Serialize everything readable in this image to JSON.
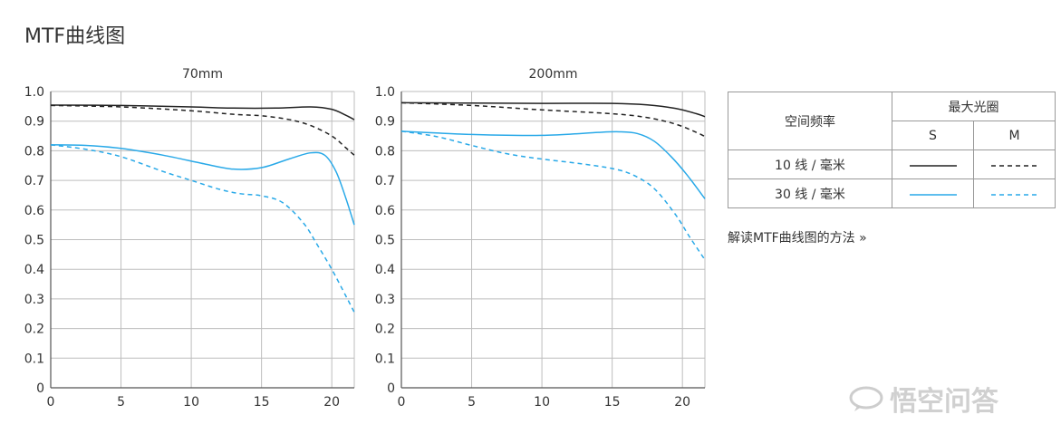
{
  "page": {
    "title": "MTF曲线图"
  },
  "chart_data": [
    {
      "type": "line",
      "title": "70mm",
      "xlim": [
        0,
        21.6
      ],
      "ylim": [
        0,
        1.0
      ],
      "x_ticks": [
        "0",
        "5",
        "10",
        "15",
        "20"
      ],
      "y_ticks": [
        "1.0",
        "0.9",
        "0.8",
        "0.7",
        "0.6",
        "0.5",
        "0.4",
        "0.3",
        "0.2",
        "0.1",
        "0"
      ],
      "grid": true,
      "series": [
        {
          "legend_ref": "10 线 / 毫米 · S",
          "color": "#222222",
          "dashed": false,
          "x": [
            0,
            5,
            10,
            13,
            16,
            18.5,
            20,
            21,
            21.6
          ],
          "y": [
            0.954,
            0.953,
            0.948,
            0.944,
            0.944,
            0.948,
            0.94,
            0.92,
            0.905
          ]
        },
        {
          "legend_ref": "10 线 / 毫米 · M",
          "color": "#222222",
          "dashed": true,
          "x": [
            0,
            5,
            10,
            13,
            15,
            17,
            18.5,
            20,
            21,
            21.6
          ],
          "y": [
            0.953,
            0.948,
            0.935,
            0.923,
            0.918,
            0.905,
            0.885,
            0.85,
            0.81,
            0.785
          ]
        },
        {
          "legend_ref": "30 线 / 毫米 · S",
          "color": "#29A9E8",
          "dashed": false,
          "x": [
            0,
            2.5,
            5,
            8,
            11,
            13,
            15,
            17,
            18.5,
            19.5,
            20.3,
            21,
            21.6
          ],
          "y": [
            0.82,
            0.818,
            0.808,
            0.785,
            0.755,
            0.738,
            0.743,
            0.773,
            0.793,
            0.785,
            0.73,
            0.64,
            0.55
          ]
        },
        {
          "legend_ref": "30 线 / 毫米 · M",
          "color": "#29A9E8",
          "dashed": true,
          "x": [
            0,
            2.5,
            5,
            8,
            10,
            12,
            13.5,
            15,
            16.5,
            18,
            19,
            20,
            21,
            21.6
          ],
          "y": [
            0.82,
            0.805,
            0.78,
            0.73,
            0.7,
            0.67,
            0.655,
            0.648,
            0.625,
            0.555,
            0.48,
            0.4,
            0.31,
            0.255
          ]
        }
      ]
    },
    {
      "type": "line",
      "title": "200mm",
      "xlim": [
        0,
        21.6
      ],
      "ylim": [
        0,
        1.0
      ],
      "x_ticks": [
        "0",
        "5",
        "10",
        "15",
        "20"
      ],
      "y_ticks": [
        "1.0",
        "0.9",
        "0.8",
        "0.7",
        "0.6",
        "0.5",
        "0.4",
        "0.3",
        "0.2",
        "0.1",
        "0"
      ],
      "grid": true,
      "series": [
        {
          "legend_ref": "10 线 / 毫米 · S",
          "color": "#222222",
          "dashed": false,
          "x": [
            0,
            5,
            10,
            15,
            17.5,
            19.5,
            21,
            21.6
          ],
          "y": [
            0.962,
            0.961,
            0.96,
            0.96,
            0.955,
            0.943,
            0.925,
            0.915
          ]
        },
        {
          "legend_ref": "10 线 / 毫米 · M",
          "color": "#222222",
          "dashed": true,
          "x": [
            0,
            5,
            10,
            15,
            17.5,
            19.5,
            21,
            21.6
          ],
          "y": [
            0.962,
            0.953,
            0.938,
            0.925,
            0.912,
            0.89,
            0.862,
            0.848
          ]
        },
        {
          "legend_ref": "30 线 / 毫米 · S",
          "color": "#29A9E8",
          "dashed": false,
          "x": [
            0,
            2.5,
            5,
            8,
            10,
            12,
            14,
            15.5,
            16.8,
            18,
            19.2,
            20.3,
            21.6
          ],
          "y": [
            0.866,
            0.86,
            0.855,
            0.852,
            0.852,
            0.856,
            0.862,
            0.864,
            0.858,
            0.832,
            0.78,
            0.72,
            0.638
          ]
        },
        {
          "legend_ref": "30 线 / 毫米 · M",
          "color": "#29A9E8",
          "dashed": true,
          "x": [
            0,
            2.5,
            5,
            7.5,
            10,
            12.5,
            15,
            16.5,
            18,
            19.5,
            20.5,
            21.6
          ],
          "y": [
            0.866,
            0.848,
            0.818,
            0.79,
            0.772,
            0.758,
            0.74,
            0.718,
            0.672,
            0.585,
            0.51,
            0.432
          ]
        }
      ]
    }
  ],
  "legend": {
    "col_header": "空间频率",
    "group_header": "最大光圈",
    "sub_headers": [
      "S",
      "M"
    ],
    "rows": [
      {
        "label": "10 线 / 毫米",
        "color": "#222222"
      },
      {
        "label": "30 线 / 毫米",
        "color": "#29A9E8"
      }
    ]
  },
  "link": {
    "text": "解读MTF曲线图的方法 »"
  },
  "watermark": {
    "text": "悟空问答"
  }
}
